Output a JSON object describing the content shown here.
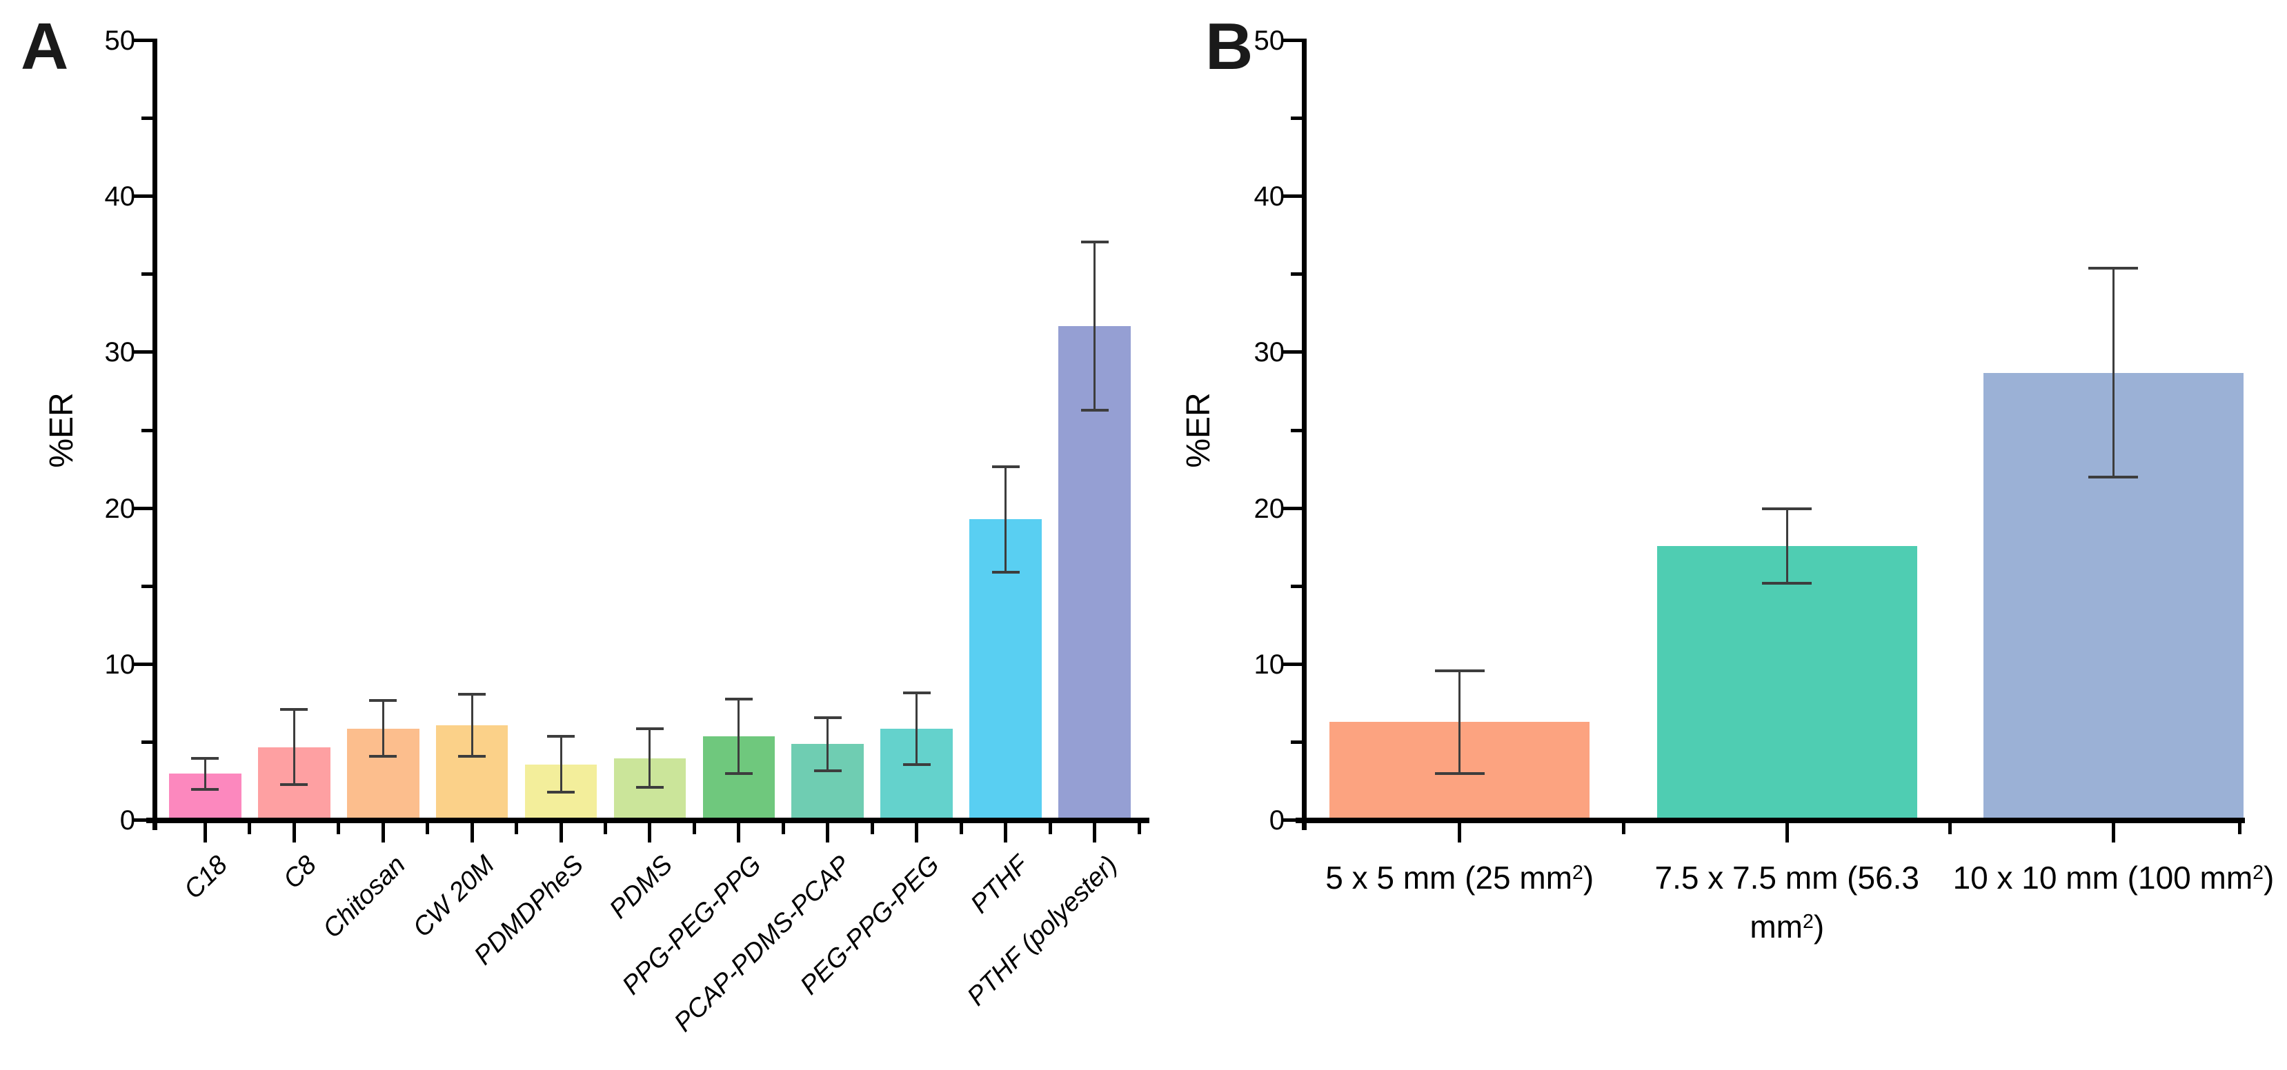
{
  "figure": {
    "background": "#FFFFFF",
    "axis_color": "#000000",
    "error_bar_color": "#3D3D3D"
  },
  "chart_data": [
    {
      "type": "bar",
      "panel_label": "A",
      "ylabel": "%ER",
      "xlabel": "",
      "ylim": [
        0,
        50
      ],
      "yticks": [
        0,
        10,
        20,
        30,
        40,
        50
      ],
      "minor_ytick_step": 5,
      "grid": false,
      "legend": false,
      "categories": [
        "C18",
        "C8",
        "Chitosan",
        "CW 20M",
        "PDMDPheS",
        "PDMS",
        "PPG-PEG-PPG",
        "PCAP-PDMS-PCAP",
        "PEG-PPG-PEG",
        "PTHF",
        "PTHF (polyester)"
      ],
      "values": [
        3.0,
        4.7,
        5.9,
        6.1,
        3.6,
        4.0,
        5.4,
        4.9,
        5.9,
        19.3,
        31.7
      ],
      "errors": [
        1.0,
        2.4,
        1.8,
        2.0,
        1.8,
        1.9,
        2.4,
        1.7,
        2.3,
        3.4,
        5.4
      ],
      "bar_colors": [
        "#FC88BE",
        "#FEA0A2",
        "#FCBE8D",
        "#FBD189",
        "#F3EE9B",
        "#CBE59A",
        "#6FC87D",
        "#6FCDB2",
        "#64D2CC",
        "#59CFF2",
        "#959FD3"
      ]
    },
    {
      "type": "bar",
      "panel_label": "B",
      "ylabel": "%ER",
      "xlabel": "",
      "ylim": [
        0,
        50
      ],
      "yticks": [
        0,
        10,
        20,
        30,
        40,
        50
      ],
      "minor_ytick_step": 5,
      "grid": false,
      "legend": false,
      "categories": [
        "5 x 5 mm (25 mm²)",
        "7.5 x 7.5 mm (56.3 mm²)",
        "10 x 10 mm (100 mm²)"
      ],
      "label_lines": [
        [
          "5 x 5 mm (25 mm²)"
        ],
        [
          "7.5 x 7.5 mm (56.3",
          "mm²)"
        ],
        [
          "10 x 10 mm (100 mm²)"
        ]
      ],
      "values": [
        6.3,
        17.6,
        28.7
      ],
      "errors": [
        3.3,
        2.4,
        6.7
      ],
      "bar_colors": [
        "#FCA380",
        "#4FCDB2",
        "#9BB1D6"
      ]
    }
  ]
}
